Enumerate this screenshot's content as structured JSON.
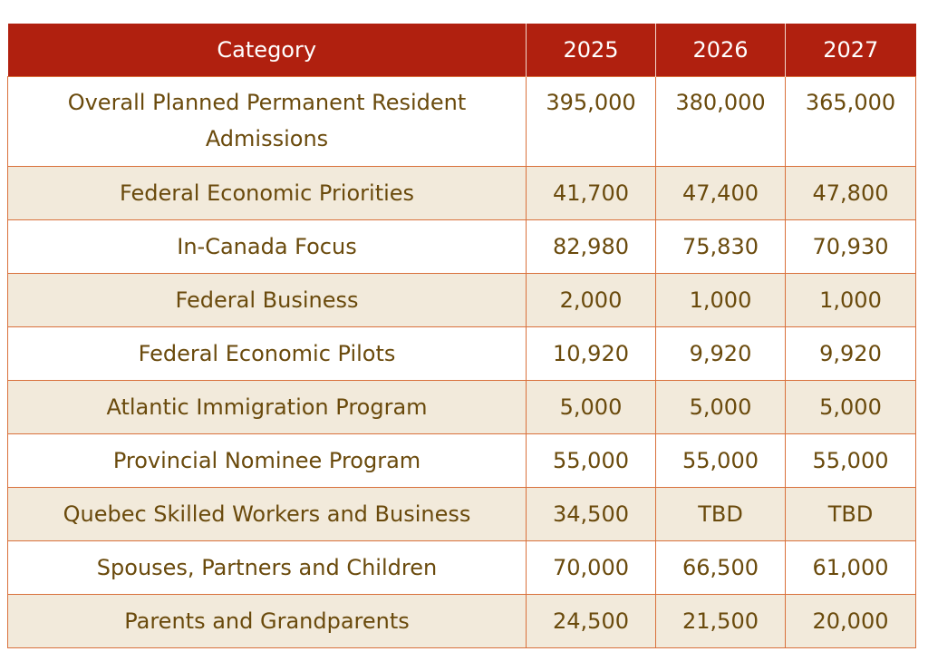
{
  "table": {
    "headers": [
      "Category",
      "2025",
      "2026",
      "2027"
    ],
    "rows": [
      {
        "category": "Overall Planned Permanent Resident Admissions",
        "y2025": "395,000",
        "y2026": "380,000",
        "y2027": "365,000"
      },
      {
        "category": "Federal Economic Priorities",
        "y2025": "41,700",
        "y2026": "47,400",
        "y2027": "47,800"
      },
      {
        "category": "In-Canada Focus",
        "y2025": "82,980",
        "y2026": "75,830",
        "y2027": "70,930"
      },
      {
        "category": "Federal Business",
        "y2025": "2,000",
        "y2026": "1,000",
        "y2027": "1,000"
      },
      {
        "category": "Federal Economic Pilots",
        "y2025": "10,920",
        "y2026": "9,920",
        "y2027": "9,920"
      },
      {
        "category": "Atlantic Immigration Program",
        "y2025": "5,000",
        "y2026": "5,000",
        "y2027": "5,000"
      },
      {
        "category": "Provincial Nominee Program",
        "y2025": "55,000",
        "y2026": "55,000",
        "y2027": "55,000"
      },
      {
        "category": "Quebec Skilled Workers and Business",
        "y2025": "34,500",
        "y2026": "TBD",
        "y2027": "TBD"
      },
      {
        "category": "Spouses, Partners and Children",
        "y2025": "70,000",
        "y2026": "66,500",
        "y2027": "61,000"
      },
      {
        "category": "Parents and Grandparents",
        "y2025": "24,500",
        "y2026": "21,500",
        "y2027": "20,000"
      }
    ]
  },
  "colors": {
    "header_bg": "#b0200f",
    "header_text": "#ffffff",
    "body_text": "#6a4a0c",
    "border": "#d9713c",
    "row_alt_bg": "#f2eadb"
  }
}
